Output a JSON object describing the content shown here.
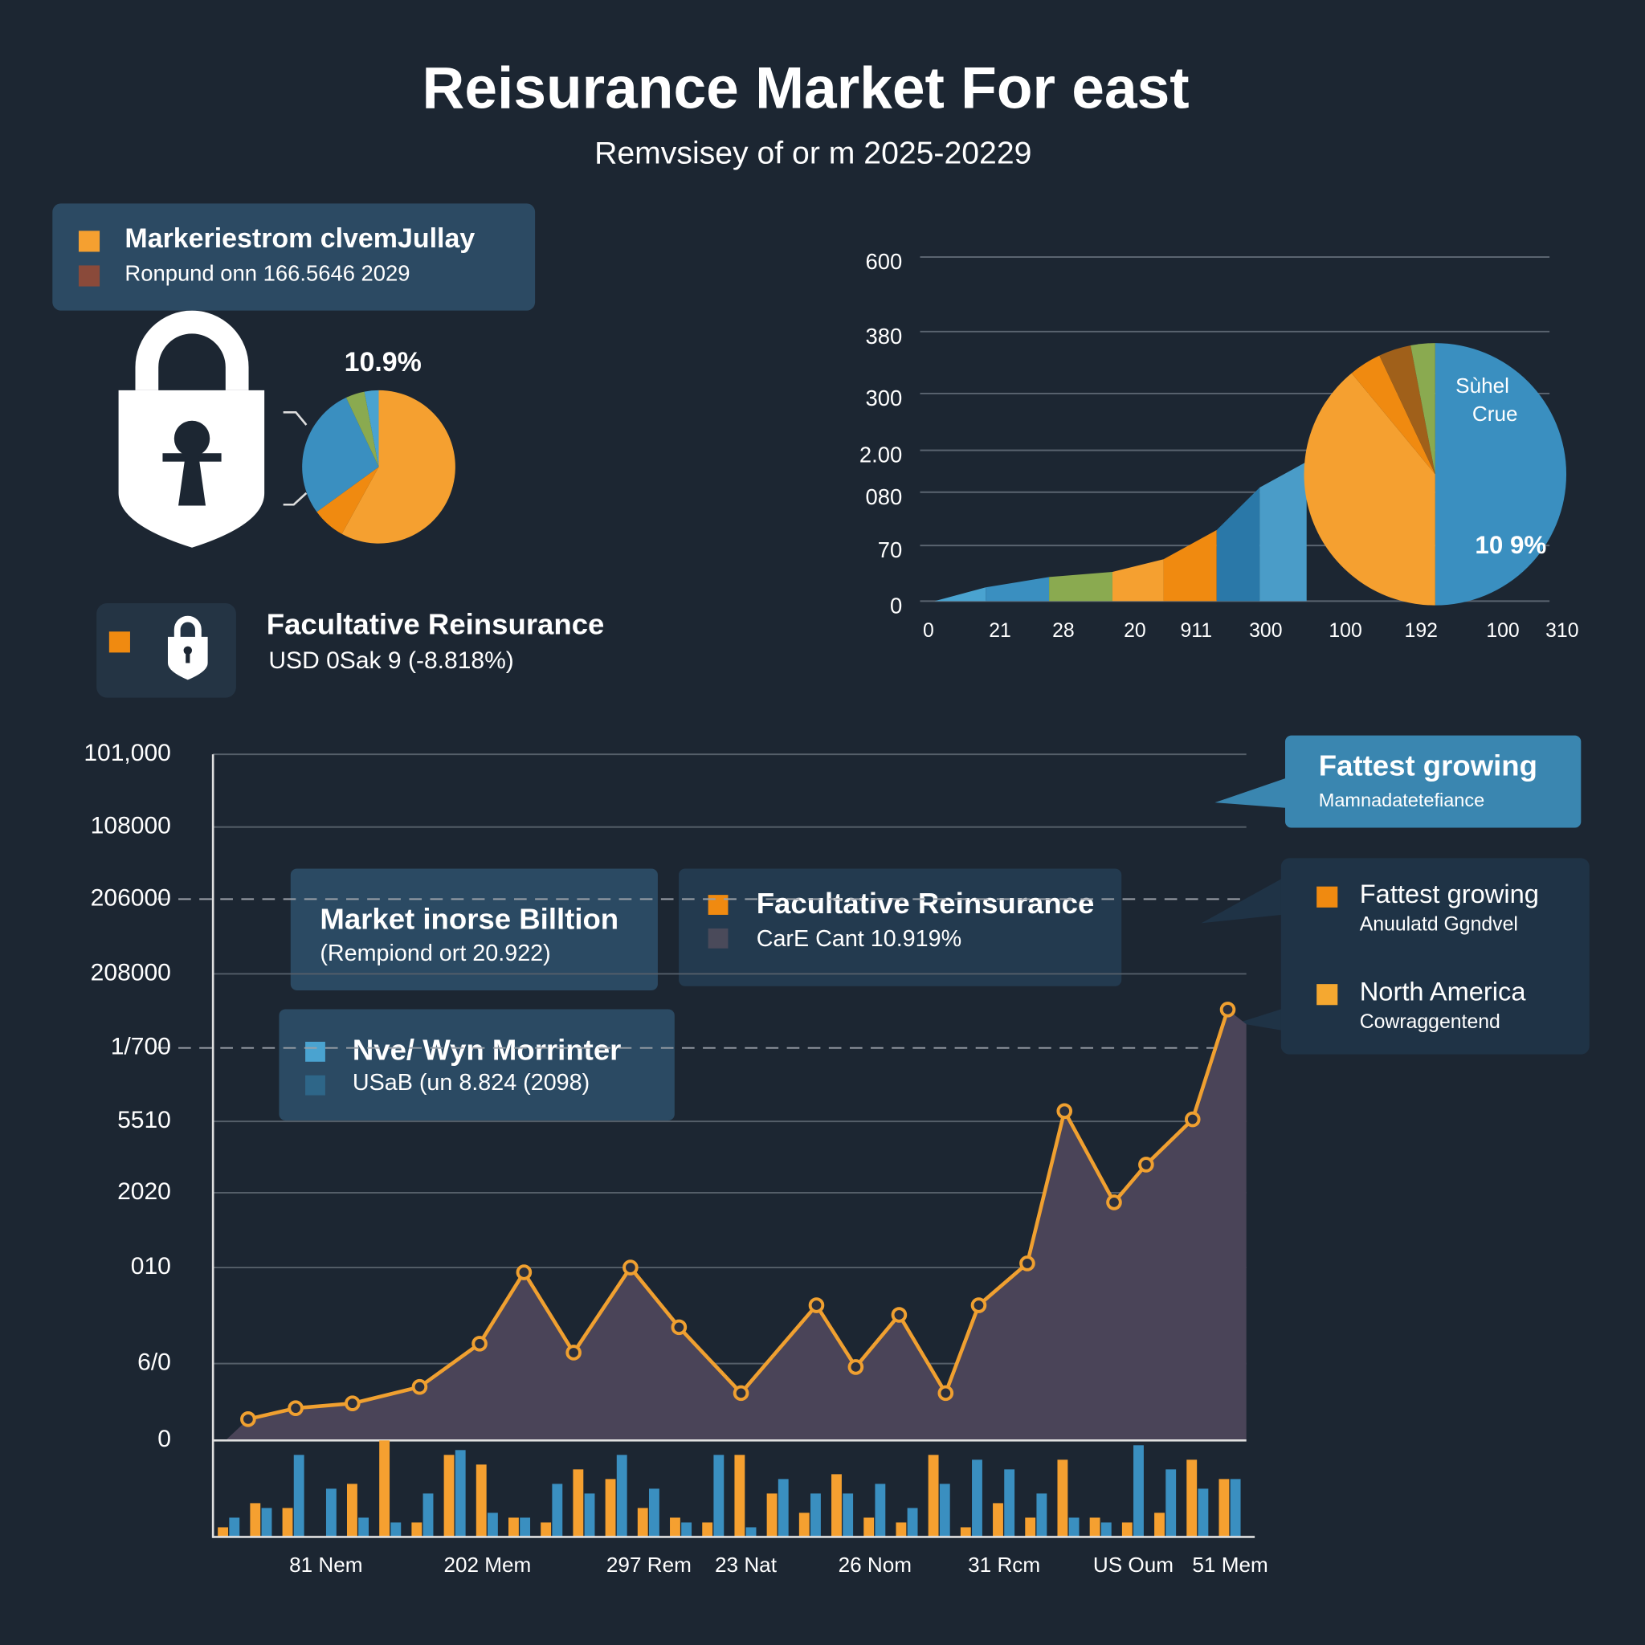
{
  "header": {
    "title": "Reisurance Market For east",
    "subtitle": "Remvsisey of or m 2025-20229"
  },
  "legend_box": {
    "items": [
      {
        "label": "Markeriestrom clvemJullay",
        "color": "#f5a030"
      },
      {
        "label": "Ronpund onn 166.5646 2029",
        "color": "#8a4a3a"
      }
    ]
  },
  "feature": {
    "title": "Facultative Reinsurance",
    "subtitle": "USD 0Sak 9 (-8.818%)",
    "color": "#f08a10"
  },
  "callouts": [
    {
      "title": "Market inorse Billtion",
      "subtitle": "(Rempiond ort 20.922)"
    },
    {
      "title": "Facultative Reinsurance",
      "subtitle": "CarE Cant 10.919%",
      "colors": [
        "#f08a10",
        "#4a4a5a"
      ]
    },
    {
      "title": "Nve/ Wyn Morrinter",
      "subtitle": "USaB (un 8.824 (2098)",
      "colors": [
        "#4aa3d0",
        "#2e6688"
      ]
    },
    {
      "title": "Fattest growing",
      "subtitle": "Mamnadatetefiance"
    }
  ],
  "side_legend": {
    "items": [
      {
        "title": "Fattest growing",
        "subtitle": "Anuulatd Ggndvel",
        "color": "#f08a10"
      },
      {
        "title": "North America",
        "subtitle": "Cowraggentend",
        "color": "#f5a830"
      }
    ]
  },
  "chart_data": [
    {
      "type": "pie",
      "annotations": [
        "10.9%"
      ],
      "values": [
        58,
        7,
        28,
        4,
        3
      ],
      "colors": [
        "#f5a030",
        "#f08a10",
        "#3a8fc0",
        "#8aaa50",
        "#4aa3d0"
      ]
    },
    {
      "type": "area",
      "x": [
        3,
        28,
        59,
        90,
        115,
        141,
        162,
        185
      ],
      "values": [
        0,
        24,
        42,
        51,
        73,
        124,
        198,
        243
      ],
      "band_colors": [
        "#4aa3d0",
        "#3a8fc0",
        "#8aaa50",
        "#f5a030",
        "#f08a10",
        "#2a78a8",
        "#4a9cc8"
      ],
      "xlim": [
        0,
        310
      ],
      "ylim": [
        0,
        600
      ],
      "xticks": [
        0,
        {
          "value": 35,
          "label": "21"
        },
        {
          "value": 66,
          "label": "28"
        },
        {
          "value": 101,
          "label": "20"
        },
        {
          "value": 131,
          "label": "911"
        },
        {
          "value": 165,
          "label": "300"
        },
        {
          "value": 204,
          "label": "100"
        },
        {
          "value": 241,
          "label": "192"
        },
        {
          "value": 281,
          "label": "100"
        },
        310
      ],
      "yticks": [
        0,
        {
          "value": 97,
          "label": "70"
        },
        {
          "value": 190,
          "label": "080"
        },
        {
          "value": 263,
          "label": "2.00"
        },
        {
          "value": 362,
          "label": "300"
        },
        {
          "value": 470,
          "label": "380"
        },
        600
      ],
      "grid": true
    },
    {
      "type": "pie",
      "annotations": [
        "Sùhel",
        "Crue",
        "10 9%"
      ],
      "values": [
        50,
        39,
        4,
        4,
        3
      ],
      "colors": [
        "#3a8fc0",
        "#f5a030",
        "#f08a10",
        "#a0601a",
        "#8aaa50"
      ]
    },
    {
      "type": "line",
      "x": [
        3.4,
        8.0,
        13.5,
        20.0,
        25.8,
        30.1,
        34.9,
        40.4,
        45.1,
        51.1,
        58.4,
        62.2,
        66.4,
        70.9,
        74.1,
        78.8,
        82.4,
        87.2,
        90.3,
        94.8,
        98.2
      ],
      "values": [
        3.1,
        4.7,
        5.4,
        7.8,
        14.1,
        24.5,
        12.8,
        25.2,
        16.5,
        6.9,
        19.7,
        10.7,
        18.3,
        6.9,
        19.7,
        25.8,
        48.0,
        34.7,
        40.2,
        46.8,
        62.8
      ],
      "color": "#f0a030",
      "fill": "#4a4458",
      "xlim": [
        0,
        100
      ],
      "ylim": [
        0,
        100
      ],
      "yticks": [
        0,
        {
          "value": 11.2,
          "label": "6/0"
        },
        {
          "value": 25.2,
          "label": "010"
        },
        {
          "value": 36.1,
          "label": "2020"
        },
        {
          "value": 46.5,
          "label": "5510"
        },
        {
          "value": 57.2,
          "label": "1/700"
        },
        {
          "value": 68,
          "label": "208000"
        },
        {
          "value": 78.9,
          "label": "206000"
        },
        {
          "value": 89.4,
          "label": "108000"
        },
        {
          "value": 100,
          "label": "101,000"
        }
      ],
      "grid": true,
      "dashed_grid_ticks": [
        5,
        7
      ]
    },
    {
      "type": "bar",
      "categories": [
        null,
        null,
        null,
        "81 Nem",
        null,
        null,
        null,
        null,
        "202  Mem",
        null,
        null,
        null,
        null,
        "297 Rem",
        null,
        null,
        "23 Nat",
        null,
        null,
        null,
        "26 Nom",
        null,
        null,
        null,
        "31 Rcm",
        null,
        null,
        null,
        "US Oum",
        null,
        null,
        "51 Mem"
      ],
      "series": [
        {
          "color": "#f5a030",
          "values": [
            10,
            35,
            30,
            0,
            55,
            100,
            15,
            85,
            75,
            20,
            15,
            70,
            60,
            30,
            20,
            15,
            85,
            45,
            25,
            65,
            20,
            15,
            85,
            10,
            35,
            20,
            80,
            20,
            15,
            25,
            80,
            60
          ]
        },
        {
          "color": "#3a8fc0",
          "values": [
            20,
            30,
            85,
            50,
            20,
            15,
            45,
            90,
            25,
            20,
            55,
            45,
            85,
            50,
            15,
            85,
            10,
            60,
            45,
            45,
            55,
            30,
            55,
            80,
            70,
            45,
            20,
            15,
            95,
            70,
            50,
            60
          ]
        }
      ],
      "ylim": [
        0,
        100
      ]
    }
  ]
}
